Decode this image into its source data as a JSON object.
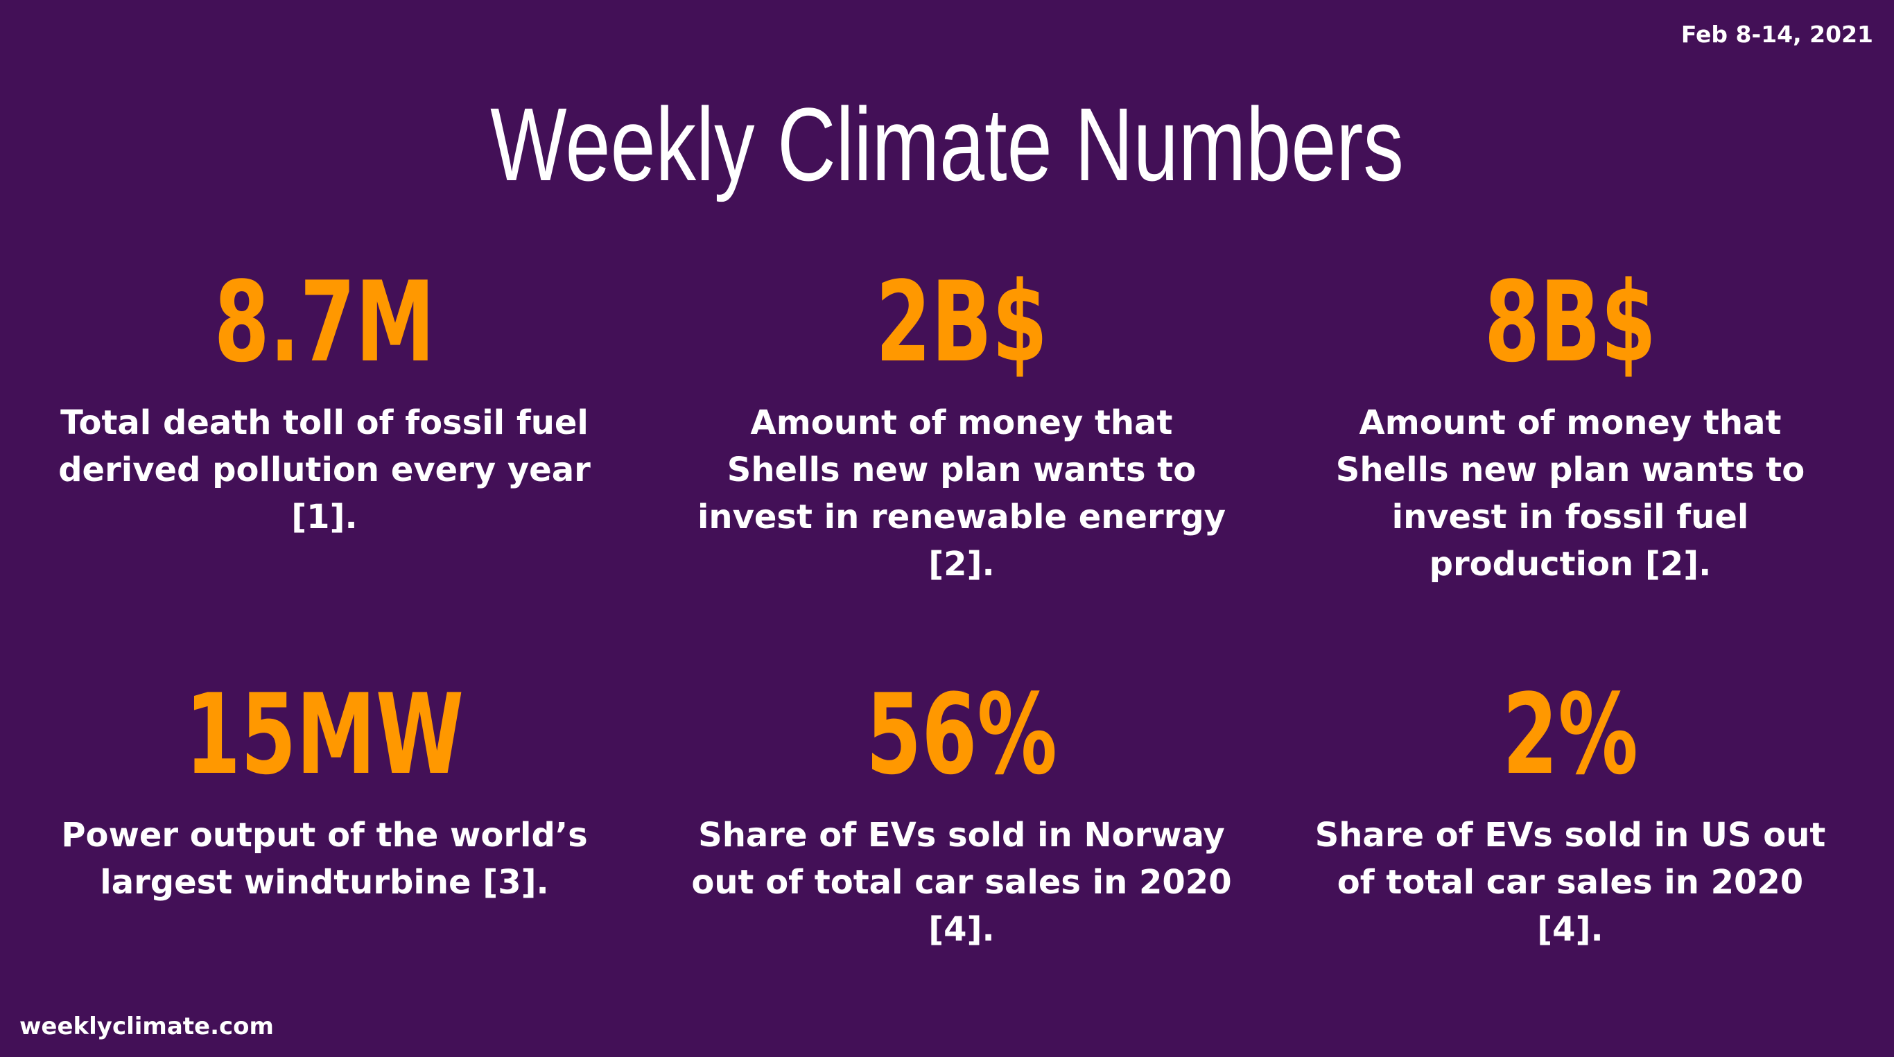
{
  "date": "Feb 8-14, 2021",
  "title": "Weekly Climate Numbers",
  "stats": [
    {
      "value": "8.7M",
      "description": "Total death toll of fossil fuel derived pollution every year [1]."
    },
    {
      "value": "2B$",
      "description": "Amount of money that Shells new plan wants to invest in renewable enerrgy [2]."
    },
    {
      "value": "8B$",
      "description": "Amount of money that Shells new plan wants to invest in fossil fuel production [2]."
    },
    {
      "value": "15MW",
      "description": "Power output of the world’s largest windturbine [3]."
    },
    {
      "value": "56%",
      "description": "Share of EVs sold in Norway out of total car sales in 2020 [4]."
    },
    {
      "value": "2%",
      "description": "Share of EVs sold in US out of total car sales in 2020 [4]."
    }
  ],
  "footer": "weeklyclimate.com",
  "colors": {
    "background": "#431057",
    "accent": "#ff9800",
    "text": "#ffffff"
  }
}
